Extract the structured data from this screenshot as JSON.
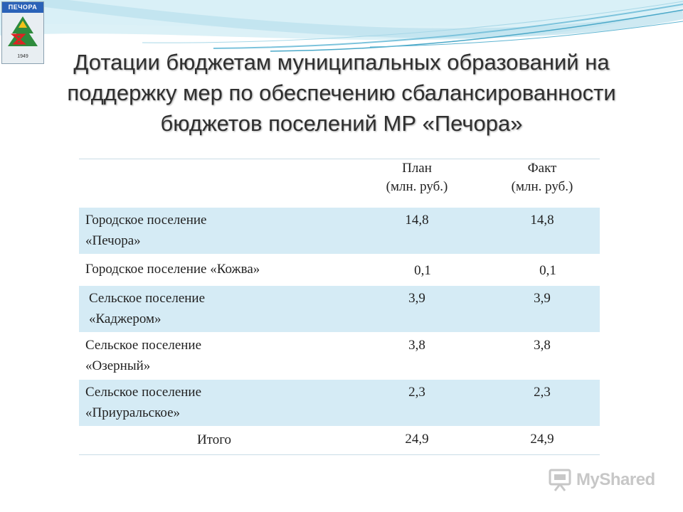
{
  "emblem": {
    "name": "ПЕЧОРА",
    "year": "1949"
  },
  "title": "Дотации бюджетам муниципальных образований  на поддержку мер по обеспечению сбалансированности бюджетов поселений МР «Печора»",
  "table": {
    "headers": {
      "plan_line1": "План",
      "plan_line2": "(млн. руб.)",
      "fact_line1": "Факт",
      "fact_line2": "(млн. руб.)"
    },
    "rows": [
      {
        "name_line1": "Городское поселение",
        "name_line2": "«Печора»",
        "plan": "14,8",
        "fact": "14,8"
      },
      {
        "name_line1": "Городское поселение «Кожва»",
        "name_line2": "",
        "plan": "0,1",
        "fact": "0,1"
      },
      {
        "name_line1": "Сельское поселение",
        "name_line2": "«Каджером»",
        "plan": "3,9",
        "fact": "3,9"
      },
      {
        "name_line1": "Сельское поселение",
        "name_line2": "«Озерный»",
        "plan": "3,8",
        "fact": "3,8"
      },
      {
        "name_line1": "Сельское поселение",
        "name_line2": "«Приуральское»",
        "plan": "2,3",
        "fact": "2,3"
      }
    ],
    "total": {
      "label": "Итого",
      "plan": "24,9",
      "fact": "24,9"
    }
  },
  "watermark": {
    "text": "MyShared",
    "icon": "presentation-board-icon"
  },
  "colors": {
    "row_shade": "#d5ebf5",
    "wave_light": "#cde9f2",
    "wave_dark": "#4aa8c8",
    "title_text": "#2f2f2f"
  }
}
